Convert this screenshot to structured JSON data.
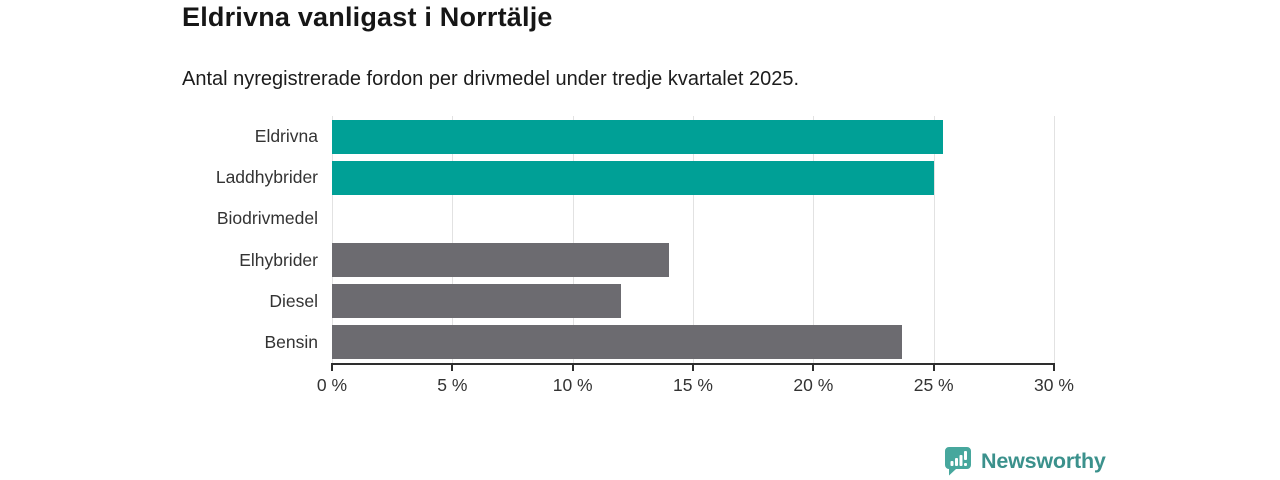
{
  "header": {
    "title": "Eldrivna vanligast i Norrtälje",
    "subtitle": "Antal nyregistrerade fordon per drivmedel under tredje kvartalet 2025."
  },
  "chart_data": {
    "type": "bar",
    "orientation": "horizontal",
    "title": "Eldrivna vanligast i Norrtälje",
    "subtitle": "Antal nyregistrerade fordon per drivmedel under tredje kvartalet 2025.",
    "categories": [
      "Eldrivna",
      "Laddhybrider",
      "Biodrivmedel",
      "Elhybrider",
      "Diesel",
      "Bensin"
    ],
    "values": [
      25.4,
      25.0,
      0,
      14.0,
      12.0,
      23.7
    ],
    "unit": "%",
    "bar_colors": [
      "#00a096",
      "#00a096",
      "#6c6b70",
      "#6c6b70",
      "#6c6b70",
      "#6c6b70"
    ],
    "xlabel": "",
    "ylabel": "",
    "xlim": [
      0,
      30
    ],
    "x_ticks": [
      0,
      5,
      10,
      15,
      20,
      25,
      30
    ],
    "x_tick_labels": [
      "0 %",
      "5 %",
      "10 %",
      "15 %",
      "20 %",
      "25 %",
      "30 %"
    ],
    "grid": true,
    "legend_position": "none"
  },
  "colors": {
    "teal": "#00a096",
    "gray": "#6c6b70",
    "gridline": "#e2e2e2",
    "axis_line": "#2e2e2e",
    "title_text": "#161616",
    "label_text": "#333333",
    "logo_icon": "#47a79d",
    "logo_text": "#3b918c"
  },
  "footer": {
    "brand": "Newsworthy"
  }
}
